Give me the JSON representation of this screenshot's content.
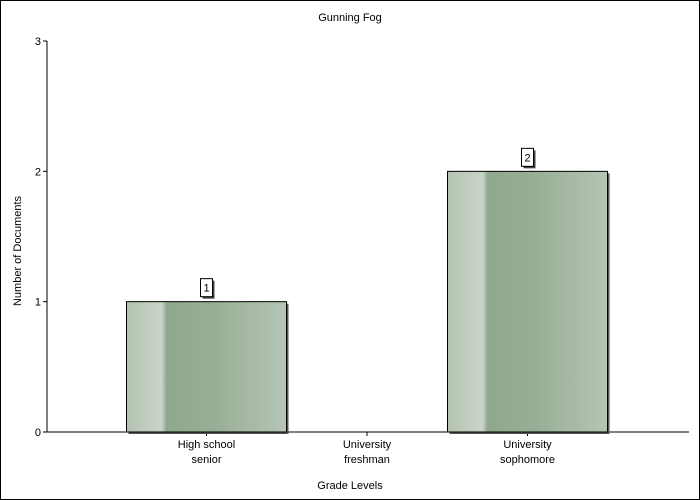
{
  "chart_data": {
    "type": "bar",
    "title": "Gunning Fog",
    "xlabel": "Grade Levels",
    "ylabel": "Number of Documents",
    "categories": [
      [
        "High school",
        "senior"
      ],
      [
        "University",
        "freshman"
      ],
      [
        "University",
        "sophomore"
      ]
    ],
    "values": [
      1,
      0,
      2
    ],
    "data_labels": [
      "1",
      "",
      "2"
    ],
    "ylim": [
      0,
      3
    ],
    "yticks": [
      "0",
      "1",
      "2",
      "3"
    ],
    "grid": false,
    "legend": "none",
    "colors": {
      "bar_light": "#c8d3c6",
      "bar_mid": "#8ea68c",
      "bar_edge": "#b6c4b3",
      "axis": "#000000"
    }
  }
}
